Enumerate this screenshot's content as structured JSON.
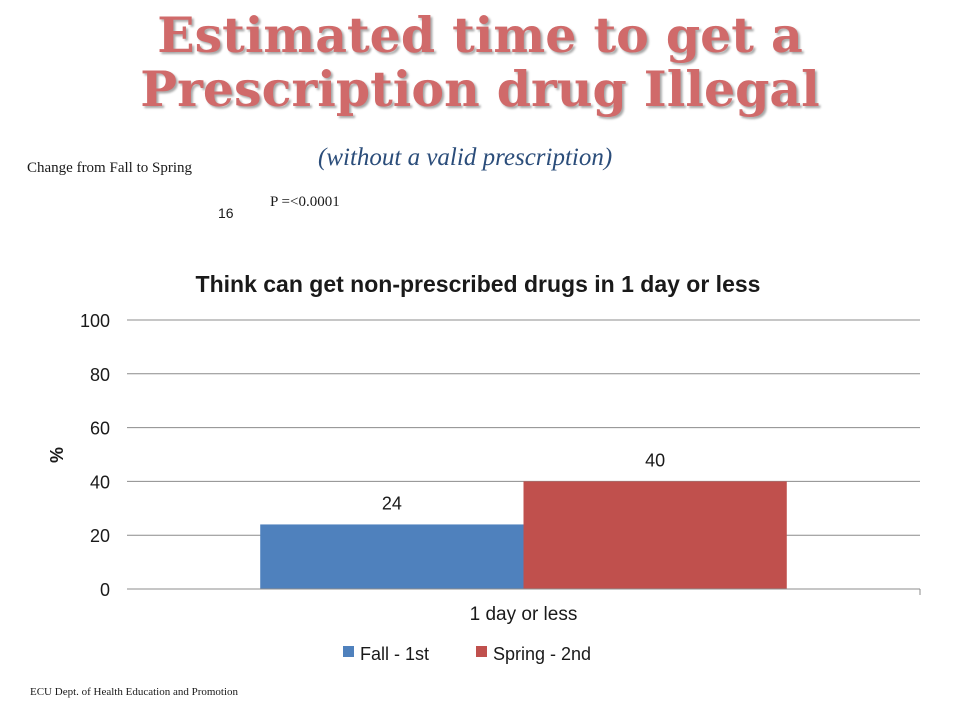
{
  "slide": {
    "title_line1": "Estimated time to get a",
    "title_line2": "Prescription drug Illegal",
    "subtitle": "(without a valid prescription)",
    "change_label": "Change  from Fall to Spring",
    "change_value": "16",
    "p_value": "P =<0.0001",
    "footer": "ECU Dept. of Health Education and Promotion"
  },
  "chart_data": {
    "type": "bar",
    "title": "Think can get non-prescribed drugs in 1 day or less",
    "xlabel": "",
    "ylabel": "%",
    "categories": [
      "1 day or less"
    ],
    "series": [
      {
        "name": "Fall - 1st",
        "values": [
          24
        ],
        "color": "#4f81bd"
      },
      {
        "name": "Spring - 2nd",
        "values": [
          40
        ],
        "color": "#c0504d"
      }
    ],
    "ylim": [
      0,
      100
    ],
    "yticks": [
      0,
      20,
      40,
      60,
      80,
      100
    ],
    "data_labels": [
      "24",
      "40"
    ],
    "grid": true,
    "legend_position": "bottom"
  }
}
